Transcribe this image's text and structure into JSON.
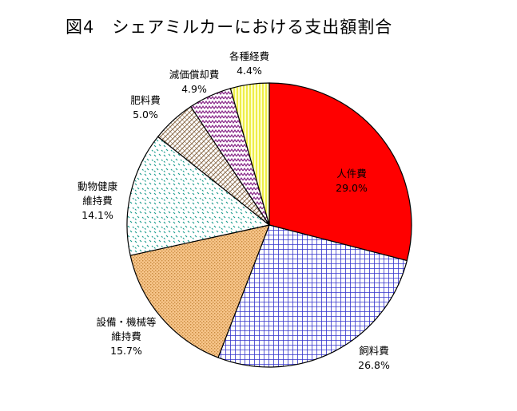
{
  "title": "図4　シェアミルカーにおける支出額割合",
  "chart_data": {
    "type": "pie",
    "title": "図4　シェアミルカーにおける支出額割合",
    "start": "12 o'clock",
    "direction": "clockwise",
    "unit": "%",
    "slices": [
      {
        "name": "人件費",
        "label_lines": [
          "人件費"
        ],
        "value": 29.0,
        "value_text": "29.0%",
        "color": "#ff0000",
        "pattern": "solid"
      },
      {
        "name": "飼料費",
        "label_lines": [
          "飼料費"
        ],
        "value": 26.8,
        "value_text": "26.8%",
        "color": "#3333cc",
        "pattern": "grid"
      },
      {
        "name": "設備・機械等維持費",
        "label_lines": [
          "設備・機械等",
          "維持費"
        ],
        "value": 15.7,
        "value_text": "15.7%",
        "color": "#f7c58a",
        "pattern": "dots"
      },
      {
        "name": "動物健康維持費",
        "label_lines": [
          "動物健康",
          "維持費"
        ],
        "value": 14.1,
        "value_text": "14.1%",
        "color": "#2aa198",
        "pattern": "sparse-dots"
      },
      {
        "name": "肥料費",
        "label_lines": [
          "肥料費"
        ],
        "value": 5.0,
        "value_text": "5.0%",
        "color": "#8b6b4a",
        "pattern": "diagonal-weave"
      },
      {
        "name": "減価償却費",
        "label_lines": [
          "減価償却費"
        ],
        "value": 4.9,
        "value_text": "4.9%",
        "color": "#8a2b8a",
        "pattern": "zigzag"
      },
      {
        "name": "各種経費",
        "label_lines": [
          "各種経費"
        ],
        "value": 4.4,
        "value_text": "4.4%",
        "color": "#e6e600",
        "pattern": "vertical-lines"
      }
    ]
  }
}
